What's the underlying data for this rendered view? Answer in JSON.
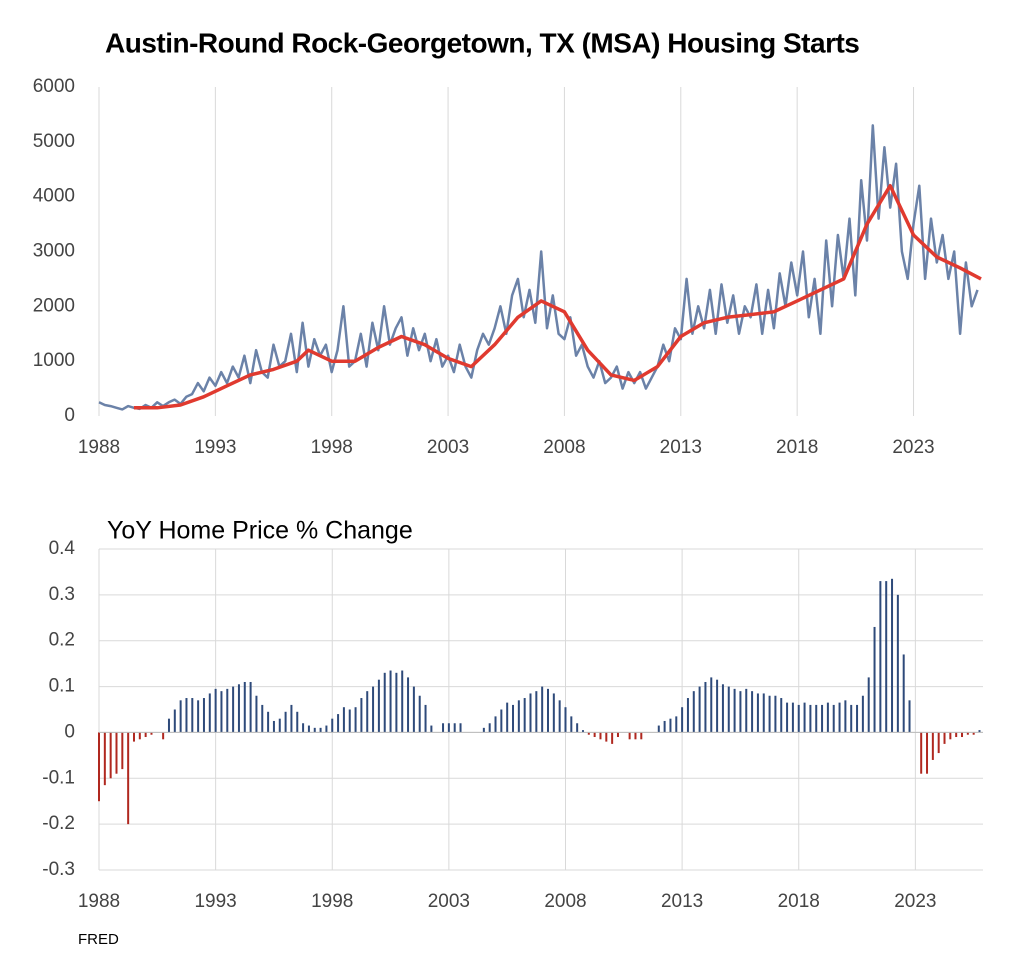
{
  "chart_data": [
    {
      "type": "line",
      "title": "Austin-Round Rock-Georgetown, TX (MSA) Housing Starts",
      "xlim": [
        1988,
        2025.9
      ],
      "xticks": [
        1988,
        1993,
        1998,
        2003,
        2008,
        2013,
        2018,
        2023
      ],
      "ylim": [
        0,
        6000
      ],
      "yticks": [
        0,
        1000,
        2000,
        3000,
        4000,
        5000,
        6000
      ],
      "xgrid": true,
      "ygrid": false,
      "series": [
        {
          "color": "#6b82a8",
          "width": 2.5,
          "x": [
            1988,
            1988.25,
            1988.5,
            1988.75,
            1989,
            1989.25,
            1989.5,
            1989.75,
            1990,
            1990.25,
            1990.5,
            1990.75,
            1991,
            1991.25,
            1991.5,
            1991.75,
            1992,
            1992.25,
            1992.5,
            1992.75,
            1993,
            1993.25,
            1993.5,
            1993.75,
            1994,
            1994.25,
            1994.5,
            1994.75,
            1995,
            1995.25,
            1995.5,
            1995.75,
            1996,
            1996.25,
            1996.5,
            1996.75,
            1997,
            1997.25,
            1997.5,
            1997.75,
            1998,
            1998.25,
            1998.5,
            1998.75,
            1999,
            1999.25,
            1999.5,
            1999.75,
            2000,
            2000.25,
            2000.5,
            2000.75,
            2001,
            2001.25,
            2001.5,
            2001.75,
            2002,
            2002.25,
            2002.5,
            2002.75,
            2003,
            2003.25,
            2003.5,
            2003.75,
            2004,
            2004.25,
            2004.5,
            2004.75,
            2005,
            2005.25,
            2005.5,
            2005.75,
            2006,
            2006.25,
            2006.5,
            2006.75,
            2007,
            2007.25,
            2007.5,
            2007.75,
            2008,
            2008.25,
            2008.5,
            2008.75,
            2009,
            2009.25,
            2009.5,
            2009.75,
            2010,
            2010.25,
            2010.5,
            2010.75,
            2011,
            2011.25,
            2011.5,
            2011.75,
            2012,
            2012.25,
            2012.5,
            2012.75,
            2013,
            2013.25,
            2013.5,
            2013.75,
            2014,
            2014.25,
            2014.5,
            2014.75,
            2015,
            2015.25,
            2015.5,
            2015.75,
            2016,
            2016.25,
            2016.5,
            2016.75,
            2017,
            2017.25,
            2017.5,
            2017.75,
            2018,
            2018.25,
            2018.5,
            2018.75,
            2019,
            2019.25,
            2019.5,
            2019.75,
            2020,
            2020.25,
            2020.5,
            2020.75,
            2021,
            2021.25,
            2021.5,
            2021.75,
            2022,
            2022.25,
            2022.5,
            2022.75,
            2023,
            2023.25,
            2023.5,
            2023.75,
            2024,
            2024.25,
            2024.5,
            2024.75,
            2025,
            2025.25,
            2025.5,
            2025.75
          ],
          "values": [
            250,
            200,
            180,
            150,
            120,
            180,
            150,
            130,
            200,
            150,
            250,
            180,
            250,
            300,
            220,
            350,
            400,
            600,
            450,
            700,
            550,
            800,
            600,
            900,
            700,
            1100,
            600,
            1200,
            800,
            700,
            1300,
            900,
            1000,
            1500,
            800,
            1700,
            900,
            1400,
            1100,
            1300,
            800,
            1200,
            2000,
            900,
            1000,
            1500,
            900,
            1700,
            1200,
            2000,
            1300,
            1600,
            1800,
            1100,
            1600,
            1200,
            1500,
            1000,
            1400,
            900,
            1100,
            800,
            1300,
            900,
            700,
            1200,
            1500,
            1300,
            1600,
            2000,
            1500,
            2200,
            2500,
            1800,
            2300,
            1700,
            3000,
            1600,
            2200,
            1500,
            1400,
            1800,
            1100,
            1300,
            900,
            700,
            1000,
            600,
            700,
            900,
            500,
            800,
            600,
            800,
            500,
            700,
            900,
            1300,
            1000,
            1600,
            1400,
            2500,
            1500,
            2000,
            1600,
            2300,
            1500,
            2400,
            1700,
            2200,
            1500,
            2000,
            1800,
            2400,
            1500,
            2300,
            1600,
            2600,
            2000,
            2800,
            2200,
            3000,
            1800,
            2500,
            1500,
            3200,
            2000,
            3300,
            2500,
            3600,
            2200,
            4300,
            3200,
            5300,
            3600,
            4900,
            3800,
            4600,
            3000,
            2500,
            3500,
            4200,
            2500,
            3600,
            2800,
            3300,
            2500,
            3000,
            1500,
            2800,
            2000,
            2300
          ]
        },
        {
          "color": "#e03a2f",
          "width": 3.5,
          "x": [
            1989.5,
            1990.5,
            1991.5,
            1992.5,
            1993.5,
            1994.5,
            1995.5,
            1996.5,
            1997,
            1998,
            1999,
            2000,
            2001,
            2002,
            2003,
            2004,
            2005,
            2006,
            2007,
            2008,
            2009,
            2010,
            2011,
            2012,
            2013,
            2014,
            2015,
            2016,
            2017,
            2018,
            2019,
            2020,
            2021,
            2022,
            2023,
            2024,
            2025,
            2025.9
          ],
          "values": [
            150,
            150,
            200,
            350,
            550,
            750,
            850,
            1000,
            1200,
            1000,
            1000,
            1250,
            1450,
            1300,
            1050,
            900,
            1300,
            1800,
            2100,
            1900,
            1200,
            750,
            650,
            900,
            1450,
            1700,
            1800,
            1850,
            1900,
            2100,
            2300,
            2500,
            3500,
            4200,
            3300,
            2900,
            2700,
            2500
          ]
        }
      ]
    },
    {
      "type": "bar",
      "title": "YoY Home Price % Change",
      "source": "FRED",
      "xlim": [
        1988,
        2025.9
      ],
      "xticks": [
        1988,
        1993,
        1998,
        2003,
        2008,
        2013,
        2018,
        2023
      ],
      "ylim": [
        -0.3,
        0.4
      ],
      "yticks": [
        -0.3,
        -0.2,
        -0.1,
        0,
        0.1,
        0.2,
        0.3,
        0.4
      ],
      "xgrid": true,
      "ygrid": true,
      "color": "#2e4a7a",
      "negative_color": "#b0281f",
      "x": [
        1988,
        1988.25,
        1988.5,
        1988.75,
        1989,
        1989.25,
        1989.5,
        1989.75,
        1990,
        1990.25,
        1990.5,
        1990.75,
        1991,
        1991.25,
        1991.5,
        1991.75,
        1992,
        1992.25,
        1992.5,
        1992.75,
        1993,
        1993.25,
        1993.5,
        1993.75,
        1994,
        1994.25,
        1994.5,
        1994.75,
        1995,
        1995.25,
        1995.5,
        1995.75,
        1996,
        1996.25,
        1996.5,
        1996.75,
        1997,
        1997.25,
        1997.5,
        1997.75,
        1998,
        1998.25,
        1998.5,
        1998.75,
        1999,
        1999.25,
        1999.5,
        1999.75,
        2000,
        2000.25,
        2000.5,
        2000.75,
        2001,
        2001.25,
        2001.5,
        2001.75,
        2002,
        2002.25,
        2002.5,
        2002.75,
        2003,
        2003.25,
        2003.5,
        2003.75,
        2004,
        2004.25,
        2004.5,
        2004.75,
        2005,
        2005.25,
        2005.5,
        2005.75,
        2006,
        2006.25,
        2006.5,
        2006.75,
        2007,
        2007.25,
        2007.5,
        2007.75,
        2008,
        2008.25,
        2008.5,
        2008.75,
        2009,
        2009.25,
        2009.5,
        2009.75,
        2010,
        2010.25,
        2010.5,
        2010.75,
        2011,
        2011.25,
        2011.5,
        2011.75,
        2012,
        2012.25,
        2012.5,
        2012.75,
        2013,
        2013.25,
        2013.5,
        2013.75,
        2014,
        2014.25,
        2014.5,
        2014.75,
        2015,
        2015.25,
        2015.5,
        2015.75,
        2016,
        2016.25,
        2016.5,
        2016.75,
        2017,
        2017.25,
        2017.5,
        2017.75,
        2018,
        2018.25,
        2018.5,
        2018.75,
        2019,
        2019.25,
        2019.5,
        2019.75,
        2020,
        2020.25,
        2020.5,
        2020.75,
        2021,
        2021.25,
        2021.5,
        2021.75,
        2022,
        2022.25,
        2022.5,
        2022.75,
        2023,
        2023.25,
        2023.5,
        2023.75,
        2024,
        2024.25,
        2024.5,
        2024.75,
        2025,
        2025.25,
        2025.5,
        2025.75
      ],
      "values": [
        -0.15,
        -0.115,
        -0.1,
        -0.09,
        -0.08,
        -0.2,
        -0.02,
        -0.015,
        -0.01,
        -0.005,
        0,
        -0.015,
        0.03,
        0.05,
        0.07,
        0.075,
        0.075,
        0.07,
        0.075,
        0.085,
        0.095,
        0.09,
        0.095,
        0.1,
        0.105,
        0.11,
        0.11,
        0.08,
        0.06,
        0.045,
        0.025,
        0.03,
        0.045,
        0.06,
        0.045,
        0.02,
        0.015,
        0.01,
        0.01,
        0.015,
        0.03,
        0.04,
        0.055,
        0.05,
        0.055,
        0.075,
        0.09,
        0.1,
        0.115,
        0.13,
        0.135,
        0.13,
        0.135,
        0.12,
        0.1,
        0.08,
        0.06,
        0.015,
        0,
        0.02,
        0.02,
        0.02,
        0.02,
        0,
        0,
        0,
        0.01,
        0.02,
        0.035,
        0.05,
        0.065,
        0.06,
        0.07,
        0.075,
        0.085,
        0.09,
        0.1,
        0.095,
        0.085,
        0.07,
        0.055,
        0.035,
        0.02,
        0.005,
        -0.005,
        -0.01,
        -0.015,
        -0.02,
        -0.025,
        -0.01,
        0,
        -0.015,
        -0.015,
        -0.015,
        0,
        0,
        0.015,
        0.025,
        0.03,
        0.035,
        0.055,
        0.075,
        0.09,
        0.1,
        0.11,
        0.12,
        0.115,
        0.105,
        0.1,
        0.095,
        0.09,
        0.095,
        0.09,
        0.085,
        0.085,
        0.08,
        0.08,
        0.075,
        0.065,
        0.065,
        0.06,
        0.065,
        0.06,
        0.06,
        0.06,
        0.065,
        0.06,
        0.065,
        0.07,
        0.06,
        0.06,
        0.08,
        0.12,
        0.23,
        0.33,
        0.33,
        0.335,
        0.3,
        0.17,
        0.07,
        0,
        -0.09,
        -0.09,
        -0.06,
        -0.045,
        -0.025,
        -0.015,
        -0.01,
        -0.01,
        -0.005,
        -0.005,
        0.005
      ]
    }
  ]
}
